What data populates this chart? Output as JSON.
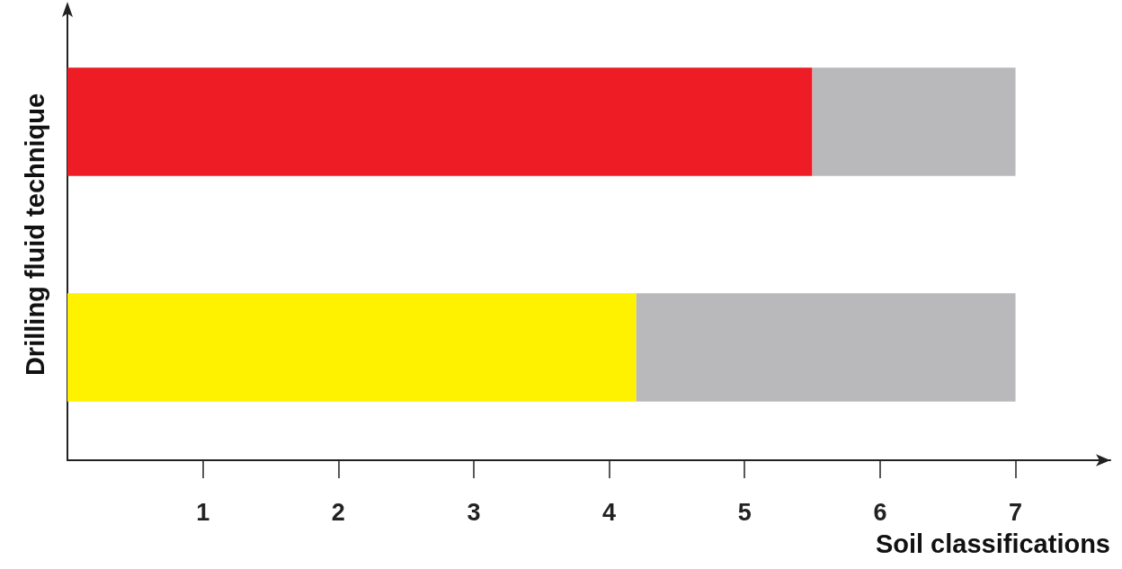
{
  "chart_data": {
    "type": "bar",
    "orientation": "horizontal",
    "stacked": true,
    "xlabel": "Soil classifications",
    "ylabel": "Drilling fluid technique",
    "categories": [
      null,
      null
    ],
    "series": [
      {
        "colors": [
          "#ee1c24",
          "#fff200"
        ],
        "values": [
          5.5,
          4.2
        ]
      },
      {
        "color": "#b9b9bb",
        "values": [
          1.5,
          2.8
        ]
      }
    ],
    "xlim": [
      0,
      7.7
    ],
    "xticks": [
      1,
      2,
      3,
      4,
      5,
      6,
      7
    ],
    "grid": false
  }
}
